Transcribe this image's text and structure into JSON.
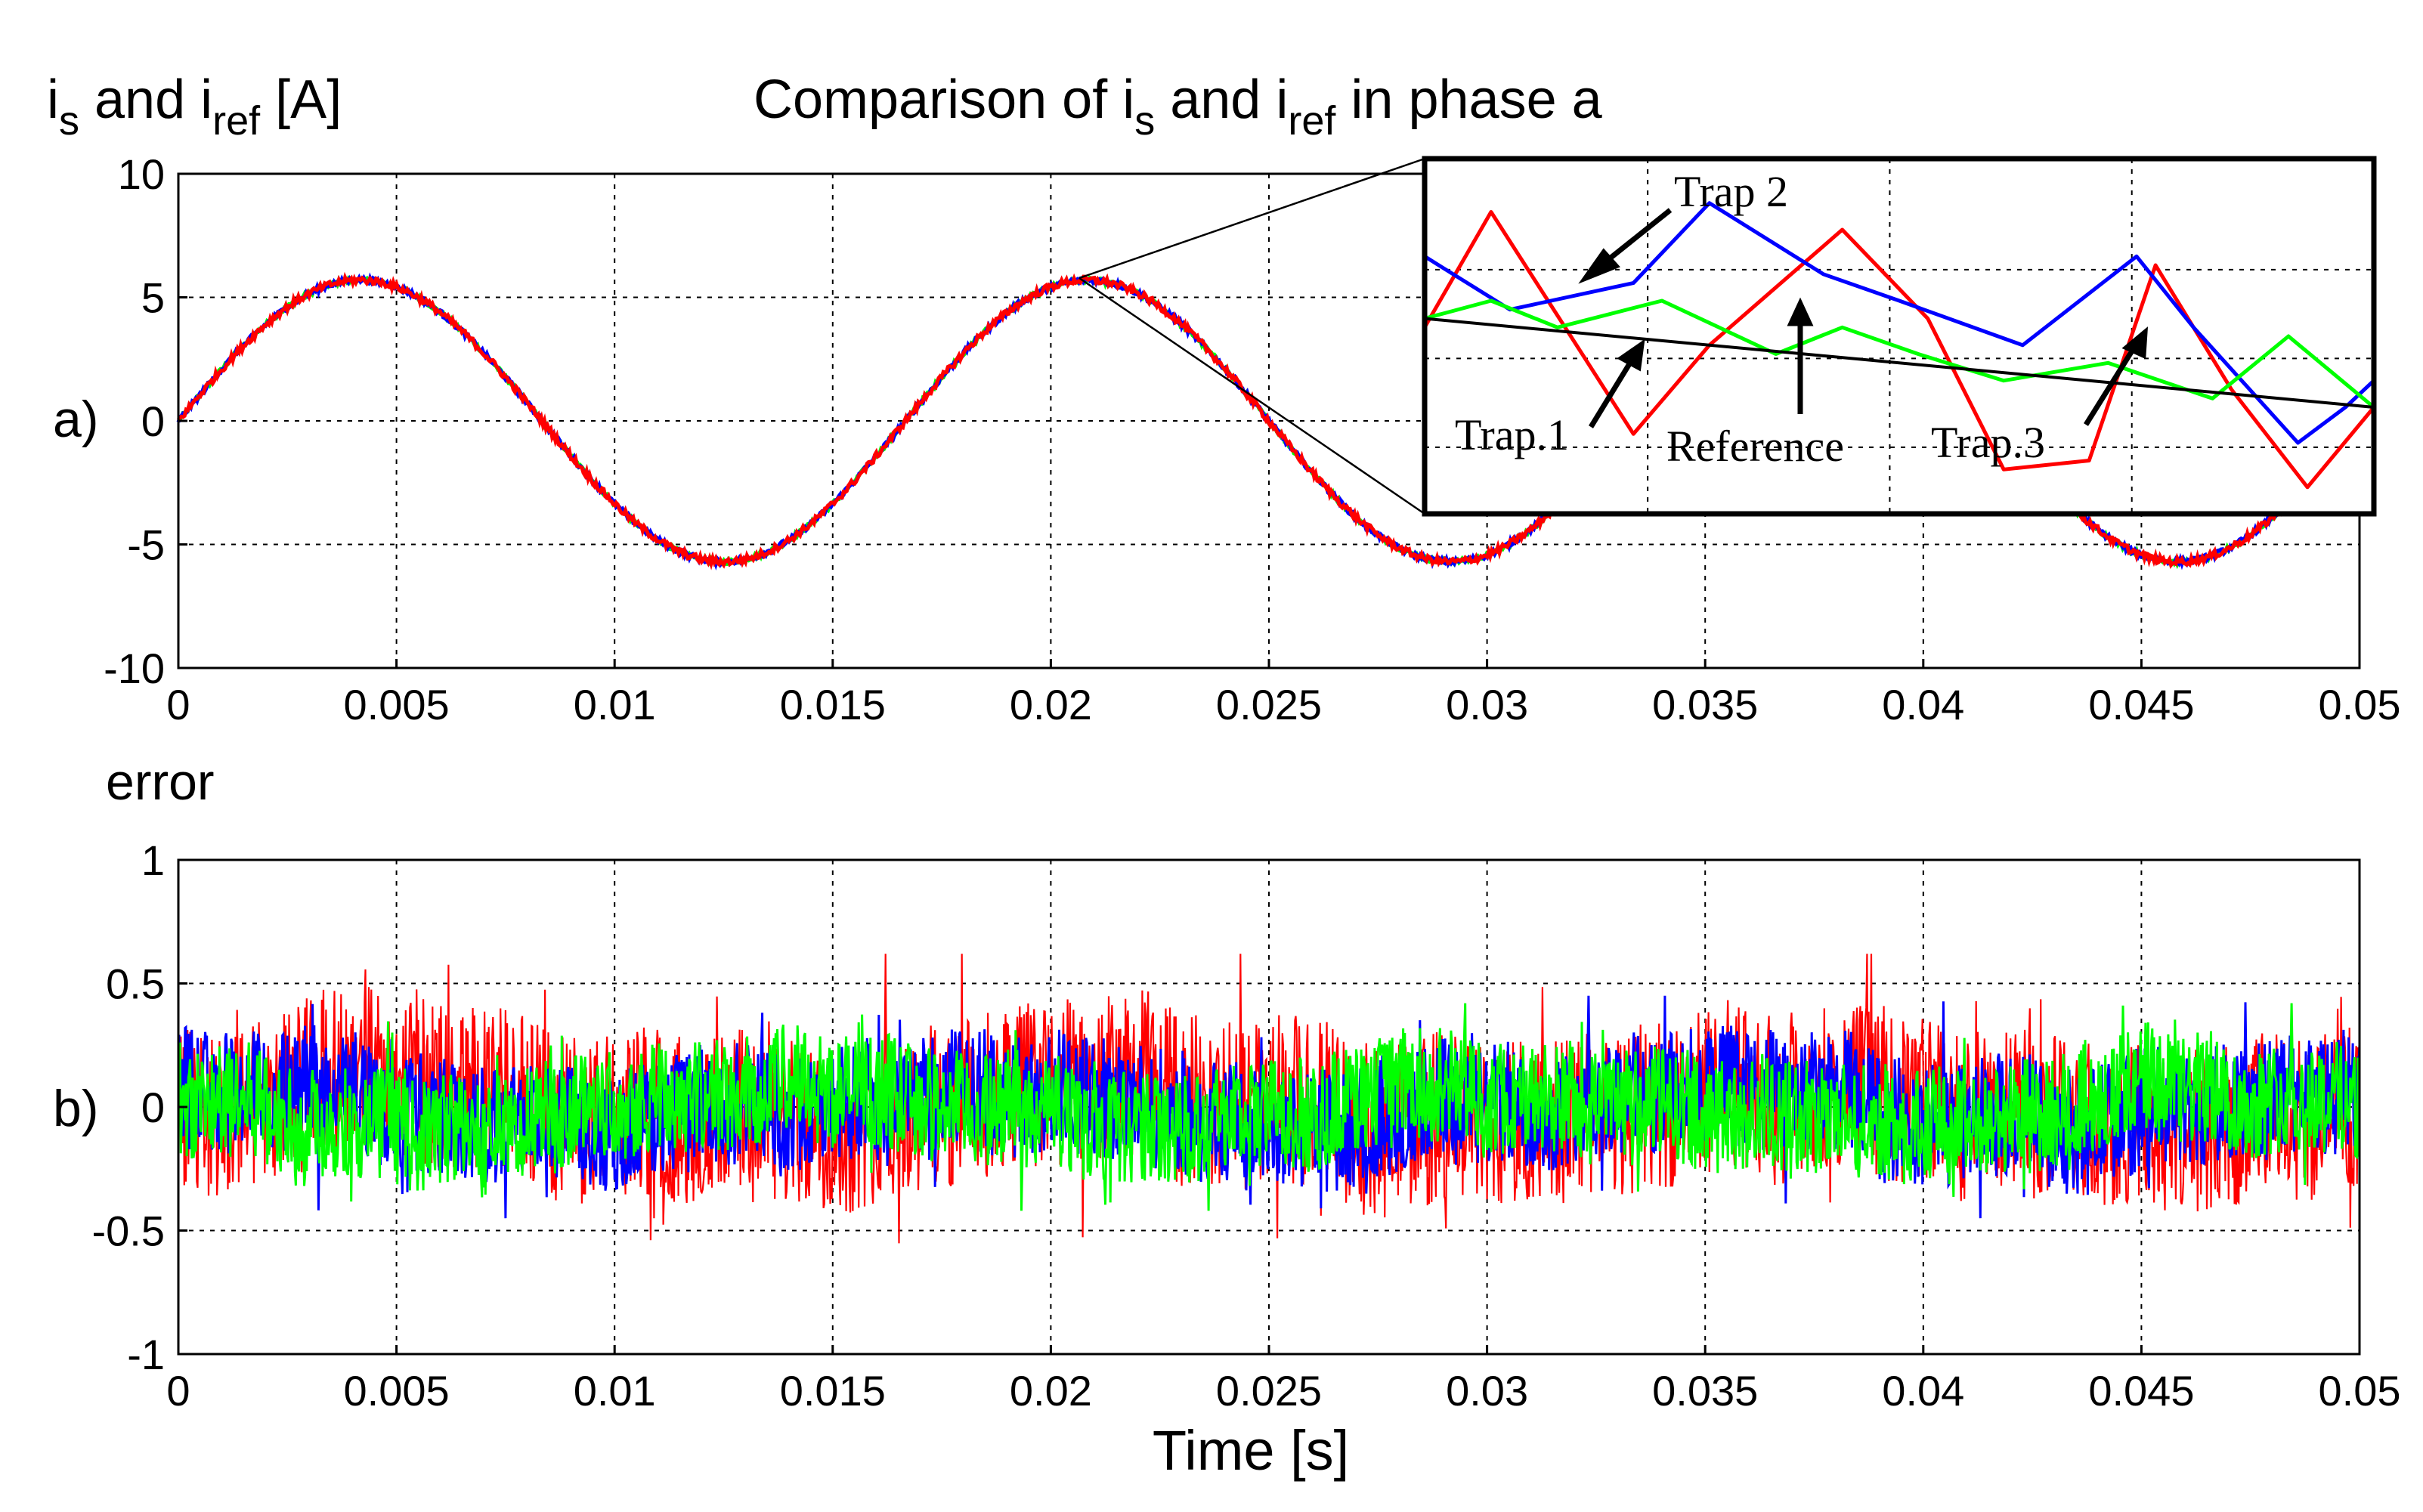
{
  "figure": {
    "title_prefix": "Comparison of i",
    "title_sub1": "s",
    "title_mid": " and i",
    "title_sub2": "ref",
    "title_suffix": " in phase a",
    "ylabel_prefix": "i",
    "ylabel_sub1": "s",
    "ylabel_mid": " and i",
    "ylabel_sub2": "ref",
    "ylabel_suffix": " [A]",
    "panel_a_label": "a)",
    "panel_b_label": "b)",
    "error_label": "error",
    "xlabel": "Time [s]"
  },
  "colors": {
    "trap1": "#ff0000",
    "trap2": "#0000ff",
    "trap3": "#00ff00",
    "reference": "#000000",
    "grid": "#000000"
  },
  "chart_data": [
    {
      "id": "currents",
      "type": "line",
      "title": "Comparison of is and iref in phase a",
      "xlabel": "Time [s]",
      "ylabel": "is and iref [A]",
      "xlim": [
        0,
        0.05
      ],
      "ylim": [
        -10,
        10
      ],
      "grid": true,
      "xticks": [
        0,
        0.005,
        0.01,
        0.015,
        0.02,
        0.025,
        0.03,
        0.035,
        0.04,
        0.045,
        0.05
      ],
      "xtick_labels": [
        "0",
        "0.005",
        "0.01",
        "0.015",
        "0.02",
        "0.025",
        "0.03",
        "0.035",
        "0.04",
        "0.045",
        "0.05"
      ],
      "yticks": [
        -10,
        -5,
        0,
        5,
        10
      ],
      "ytick_labels": [
        "-10",
        "-5",
        "0",
        "5",
        "10"
      ],
      "signal": {
        "amplitude": 5.7,
        "frequency_hz": 60,
        "phase": 0
      },
      "series": [
        {
          "name": "Trap.1",
          "color": "#ff0000",
          "noise_amplitude": 0.15
        },
        {
          "name": "Trap 2",
          "color": "#0000ff",
          "noise_amplitude": 0.12
        },
        {
          "name": "Trap.3",
          "color": "#00ff00",
          "noise_amplitude": 0.1
        }
      ]
    },
    {
      "id": "error",
      "type": "line",
      "title": "",
      "xlabel": "Time [s]",
      "ylabel": "error",
      "xlim": [
        0,
        0.05
      ],
      "ylim": [
        -1,
        1
      ],
      "grid": true,
      "xticks": [
        0,
        0.005,
        0.01,
        0.015,
        0.02,
        0.025,
        0.03,
        0.035,
        0.04,
        0.045,
        0.05
      ],
      "xtick_labels": [
        "0",
        "0.005",
        "0.01",
        "0.015",
        "0.02",
        "0.025",
        "0.03",
        "0.035",
        "0.04",
        "0.045",
        "0.05"
      ],
      "yticks": [
        -1,
        -0.5,
        0,
        0.5,
        1
      ],
      "ytick_labels": [
        "-1",
        "-0.5",
        "0",
        "0.5",
        "1"
      ],
      "series": [
        {
          "name": "Trap.1",
          "color": "#ff0000",
          "range": [
            -0.62,
            0.62
          ]
        },
        {
          "name": "Trap 2",
          "color": "#0000ff",
          "range": [
            -0.45,
            0.45
          ]
        },
        {
          "name": "Trap.3",
          "color": "#00ff00",
          "range": [
            -0.42,
            0.42
          ]
        }
      ]
    },
    {
      "id": "inset",
      "type": "line",
      "title": "",
      "grid": true,
      "xlim": [
        0,
        10
      ],
      "ylim": [
        3.4,
        7.4
      ],
      "annotations": [
        "Trap 2",
        "Trap.1",
        "Reference",
        "Trap.3"
      ],
      "series": [
        {
          "name": "Reference",
          "color": "#000000",
          "x": [
            0,
            10
          ],
          "y": [
            5.6,
            4.6
          ]
        },
        {
          "name": "Trap.1",
          "color": "#ff0000",
          "x": [
            0,
            0.7,
            2.2,
            3.0,
            4.4,
            5.3,
            6.1,
            7.0,
            7.7,
            8.5,
            9.3,
            10
          ],
          "y": [
            5.5,
            6.8,
            4.3,
            5.3,
            6.6,
            5.6,
            3.9,
            4.0,
            6.2,
            4.8,
            3.7,
            4.6
          ]
        },
        {
          "name": "Trap 2",
          "color": "#0000ff",
          "x": [
            0,
            0.9,
            2.2,
            3.0,
            4.2,
            5.0,
            6.3,
            7.5,
            8.1,
            9.2,
            9.7,
            10
          ],
          "y": [
            6.3,
            5.7,
            6.0,
            6.9,
            6.1,
            5.8,
            5.3,
            6.3,
            5.5,
            4.2,
            4.6,
            4.9
          ]
        },
        {
          "name": "Trap.3",
          "color": "#00ff00",
          "x": [
            0,
            0.7,
            1.4,
            2.5,
            3.7,
            4.4,
            5.2,
            6.1,
            7.2,
            8.3,
            9.1,
            10
          ],
          "y": [
            5.6,
            5.8,
            5.5,
            5.8,
            5.2,
            5.5,
            5.2,
            4.9,
            5.1,
            4.7,
            5.4,
            4.6
          ]
        }
      ]
    }
  ]
}
